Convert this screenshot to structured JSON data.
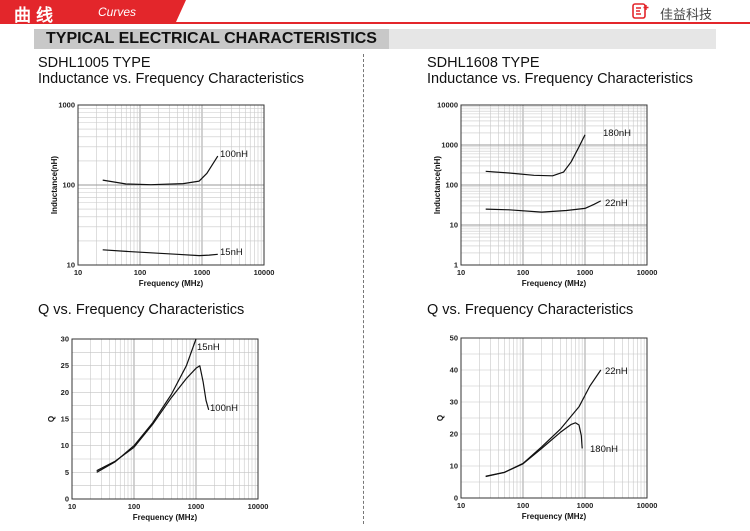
{
  "header": {
    "title_cn": "曲线",
    "title_en": "Curves",
    "brand": "佳益科技",
    "accent": "#e3262b"
  },
  "section": {
    "title": "TYPICAL ELECTRICAL CHARACTERISTICS"
  },
  "left": {
    "type_label": "SDHL1005 TYPE",
    "chart1_title": "Inductance vs. Frequency Characteristics",
    "chart2_title": "Q vs. Frequency Characteristics"
  },
  "right": {
    "type_label": "SDHL1608 TYPE",
    "chart1_title": "Inductance vs. Frequency Characteristics",
    "chart2_title": "Q vs. Frequency Characteristics"
  },
  "chart_data": [
    {
      "type": "line",
      "xlabel": "Frequency (MHz)",
      "ylabel": "Inductance(nH)",
      "xscale": "log",
      "yscale": "log",
      "xlim": [
        10,
        10000
      ],
      "ylim": [
        10,
        1000
      ],
      "xticks": [
        "10",
        "100",
        "1000",
        "10000"
      ],
      "yticks": [
        "10",
        "100",
        "1000"
      ],
      "series": [
        {
          "name": "100nH",
          "x": [
            25,
            60,
            150,
            500,
            900,
            1200,
            1800
          ],
          "y": [
            115,
            103,
            101,
            104,
            112,
            140,
            230
          ]
        },
        {
          "name": "15nH",
          "x": [
            25,
            60,
            150,
            400,
            900,
            1300,
            1800
          ],
          "y": [
            15.5,
            14.8,
            14.2,
            13.6,
            13.1,
            13.3,
            13.6
          ]
        }
      ]
    },
    {
      "type": "line",
      "xlabel": "Frequency (MHz)",
      "ylabel": "Q",
      "xscale": "log",
      "yscale": "linear",
      "xlim": [
        10,
        10000
      ],
      "ylim": [
        0,
        30
      ],
      "xticks": [
        "10",
        "100",
        "1000",
        "10000"
      ],
      "yticks": [
        "0",
        "5",
        "10",
        "15",
        "20",
        "25",
        "30"
      ],
      "series": [
        {
          "name": "15nH",
          "x": [
            25,
            50,
            100,
            200,
            400,
            700,
            1000
          ],
          "y": [
            5.0,
            7.0,
            10.0,
            14.3,
            19.6,
            25.0,
            30.0
          ]
        },
        {
          "name": "100nH",
          "x": [
            25,
            50,
            100,
            200,
            400,
            700,
            1000,
            1150,
            1300,
            1450,
            1600
          ],
          "y": [
            5.3,
            7.1,
            9.7,
            14.0,
            19.0,
            22.6,
            24.5,
            25.0,
            22.0,
            18.5,
            16.7
          ]
        }
      ]
    },
    {
      "type": "line",
      "xlabel": "Frequency (MHz)",
      "ylabel": "Inductance(nH)",
      "xscale": "log",
      "yscale": "log",
      "xlim": [
        10,
        10000
      ],
      "ylim": [
        1,
        10000
      ],
      "xticks": [
        "10",
        "100",
        "1000",
        "10000"
      ],
      "yticks": [
        "1",
        "10",
        "100",
        "1000",
        "10000"
      ],
      "series": [
        {
          "name": "180nH",
          "x": [
            25,
            60,
            150,
            300,
            450,
            600,
            800,
            1000
          ],
          "y": [
            220,
            200,
            175,
            170,
            210,
            380,
            900,
            1800
          ]
        },
        {
          "name": "22nH",
          "x": [
            25,
            60,
            200,
            500,
            1000,
            1400,
            1800
          ],
          "y": [
            25,
            24,
            21,
            23,
            26,
            33,
            40
          ]
        }
      ]
    },
    {
      "type": "line",
      "xlabel": "Frequency (MHz)",
      "ylabel": "Q",
      "xscale": "log",
      "yscale": "linear",
      "xlim": [
        10,
        10000
      ],
      "ylim": [
        0,
        50
      ],
      "xticks": [
        "10",
        "100",
        "1000",
        "10000"
      ],
      "yticks": [
        "0",
        "10",
        "20",
        "30",
        "40",
        "50"
      ],
      "series": [
        {
          "name": "22nH",
          "x": [
            25,
            50,
            100,
            200,
            400,
            800,
            1200,
            1800
          ],
          "y": [
            6.7,
            8.0,
            10.8,
            16.0,
            21.5,
            28.5,
            35.0,
            40.0
          ]
        },
        {
          "name": "180nH",
          "x": [
            25,
            50,
            100,
            200,
            400,
            600,
            700,
            800,
            870,
            900
          ],
          "y": [
            6.8,
            8.0,
            10.7,
            15.5,
            20.5,
            23.0,
            23.5,
            22.8,
            19.5,
            15.5
          ]
        }
      ]
    }
  ]
}
